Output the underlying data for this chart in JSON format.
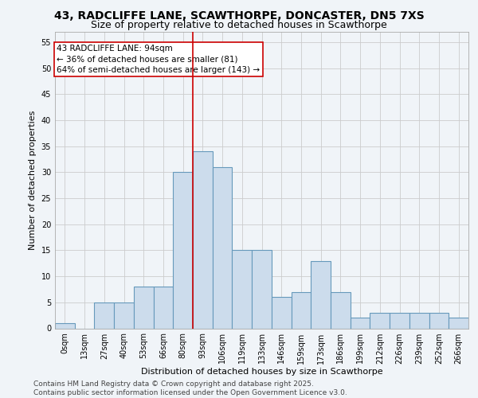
{
  "title1": "43, RADCLIFFE LANE, SCAWTHORPE, DONCASTER, DN5 7XS",
  "title2": "Size of property relative to detached houses in Scawthorpe",
  "xlabel": "Distribution of detached houses by size in Scawthorpe",
  "ylabel": "Number of detached properties",
  "categories": [
    "0sqm",
    "13sqm",
    "27sqm",
    "40sqm",
    "53sqm",
    "66sqm",
    "80sqm",
    "93sqm",
    "106sqm",
    "119sqm",
    "133sqm",
    "146sqm",
    "159sqm",
    "173sqm",
    "186sqm",
    "199sqm",
    "212sqm",
    "226sqm",
    "239sqm",
    "252sqm",
    "266sqm"
  ],
  "values": [
    1,
    0,
    5,
    5,
    8,
    8,
    30,
    34,
    31,
    15,
    15,
    6,
    7,
    13,
    7,
    2,
    3,
    3,
    3,
    3,
    2
  ],
  "bar_color": "#ccdcec",
  "bar_edge_color": "#6699bb",
  "reference_line_index": 7,
  "reference_line_color": "#cc0000",
  "annotation_text": "43 RADCLIFFE LANE: 94sqm\n← 36% of detached houses are smaller (81)\n64% of semi-detached houses are larger (143) →",
  "annotation_box_color": "#ffffff",
  "annotation_box_edge_color": "#cc0000",
  "ylim": [
    0,
    57
  ],
  "yticks": [
    0,
    5,
    10,
    15,
    20,
    25,
    30,
    35,
    40,
    45,
    50,
    55
  ],
  "grid_color": "#cccccc",
  "background_color": "#f0f4f8",
  "footer_text": "Contains HM Land Registry data © Crown copyright and database right 2025.\nContains public sector information licensed under the Open Government Licence v3.0.",
  "title_fontsize": 10,
  "subtitle_fontsize": 9,
  "axis_label_fontsize": 8,
  "tick_fontsize": 7,
  "annotation_fontsize": 7.5,
  "footer_fontsize": 6.5
}
